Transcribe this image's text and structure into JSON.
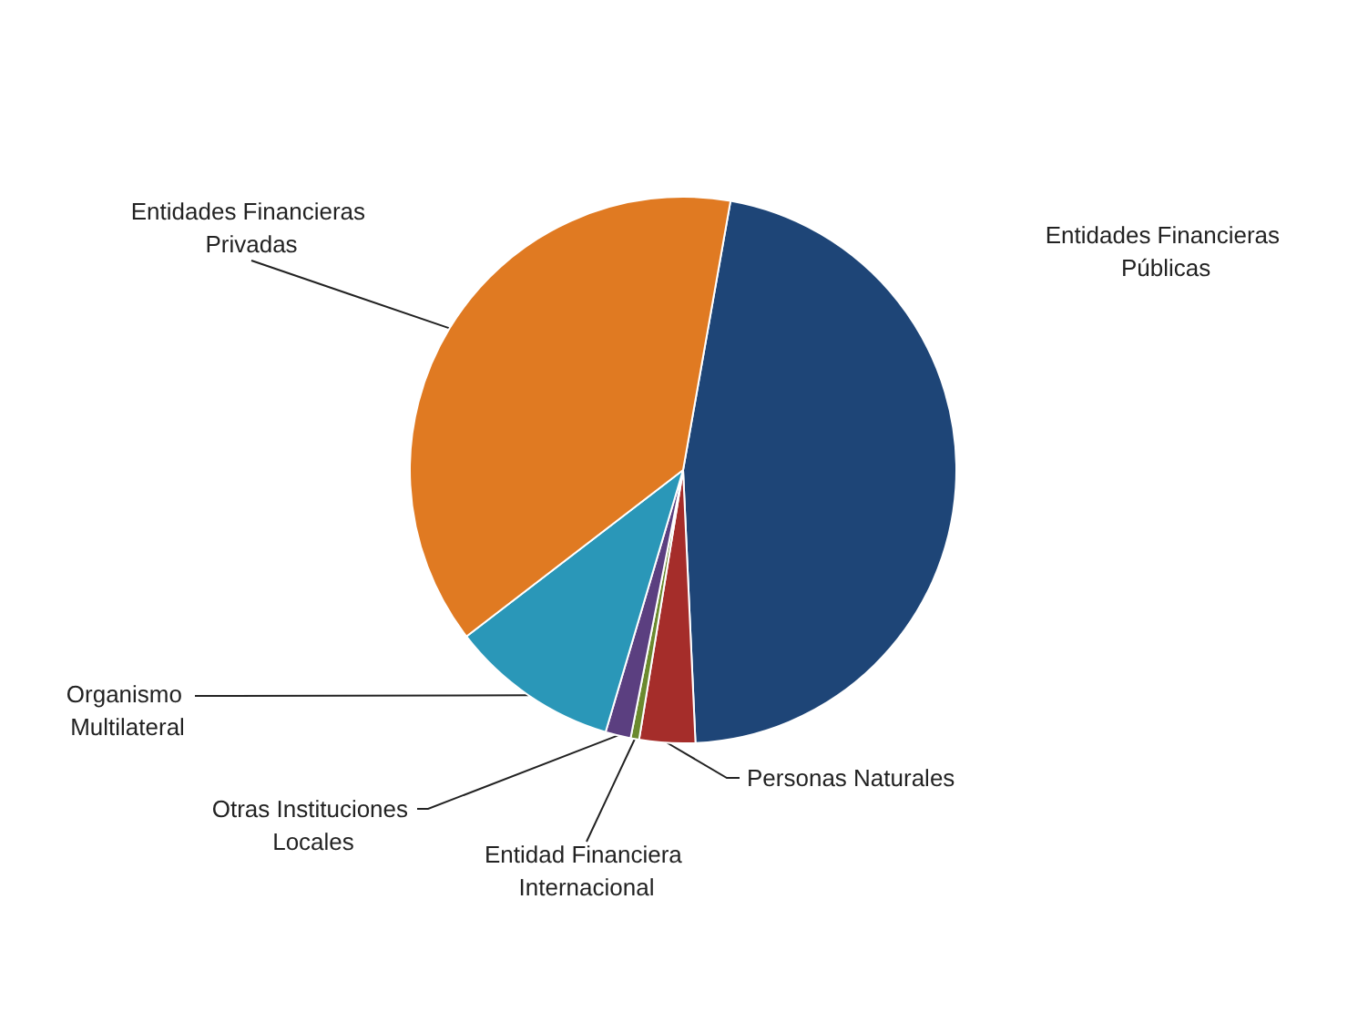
{
  "chart_data": {
    "type": "pie",
    "categories": [
      "Entidades Financieras Públicas",
      "Personas Naturales",
      "Entidad Financiera Internacional",
      "Otras Instituciones Locales",
      "Organismo Multilateral",
      "Entidades Financieras Privadas"
    ],
    "values": [
      46.5,
      3.3,
      0.5,
      1.5,
      10,
      38.2
    ],
    "colors": [
      "#1e4577",
      "#a52d2a",
      "#6b8a2e",
      "#5b3f80",
      "#2a97b8",
      "#e07a22"
    ]
  }
}
